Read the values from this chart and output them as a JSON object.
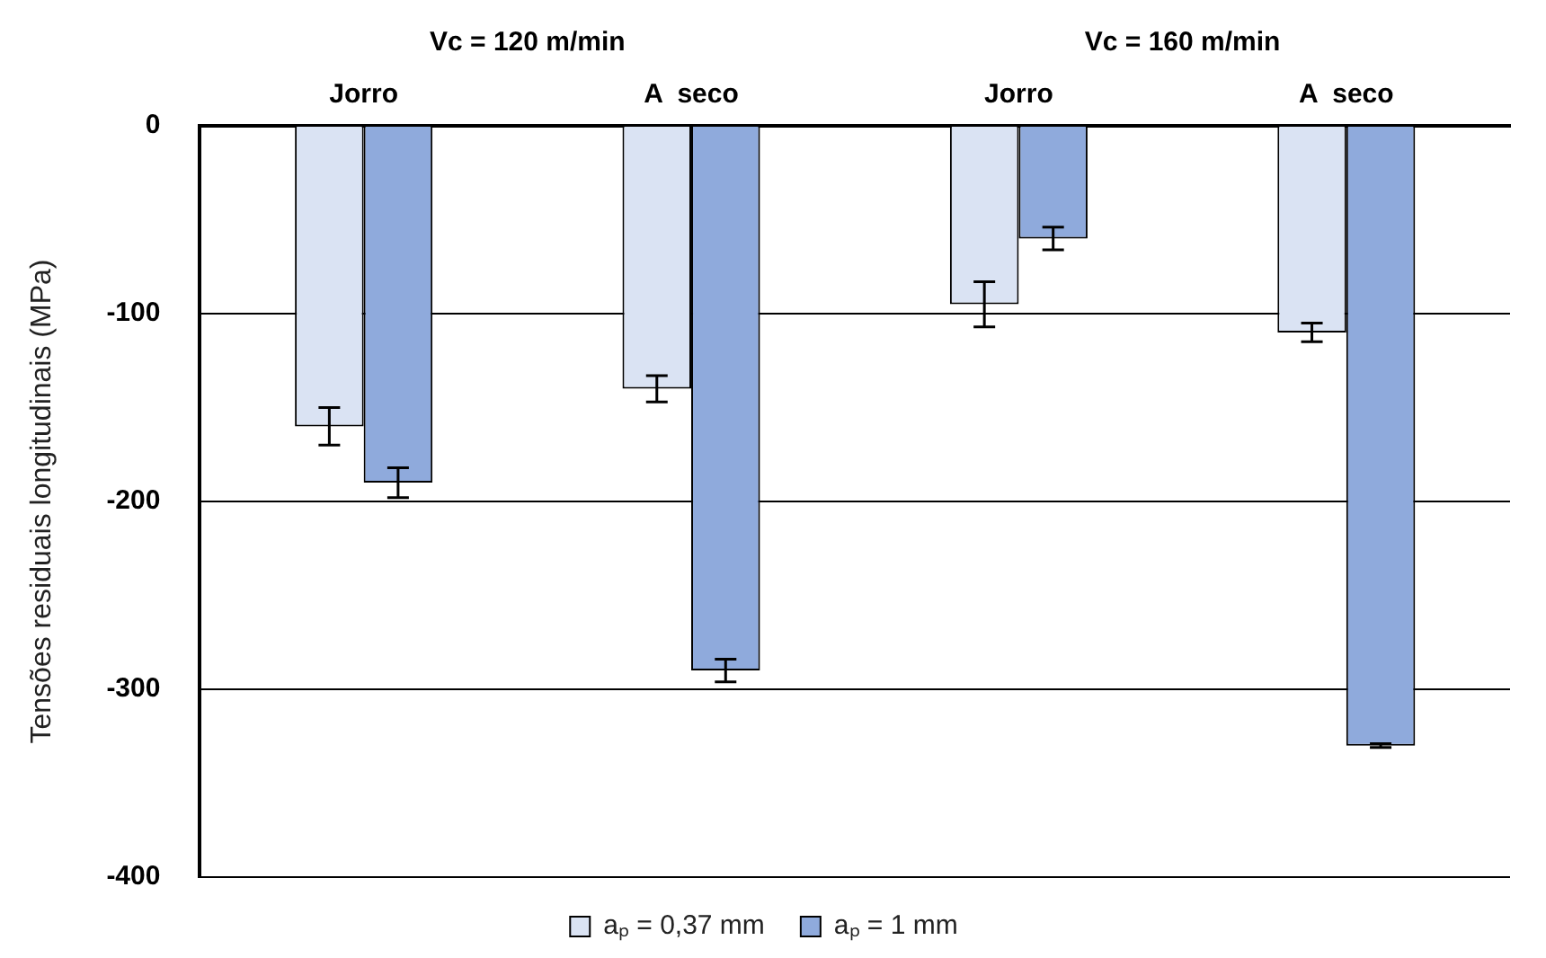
{
  "chart_data": {
    "type": "bar",
    "ylabel": "Tensões residuais longitudinais (MPa)",
    "categories": [
      "Jorro",
      "A  seco",
      "Jorro",
      "A  seco"
    ],
    "annotations": [
      "Vc = 120 m/min",
      "Vc = 160 m/min"
    ],
    "series": [
      {
        "name": "aₚ = 0,37 mm",
        "color": "#dae3f3",
        "values": [
          -160,
          -140,
          -95,
          -110
        ],
        "errors": [
          10,
          7,
          12,
          5
        ]
      },
      {
        "name": "aₚ = 1 mm",
        "color": "#8faadc",
        "values": [
          -190,
          -290,
          -60,
          -330
        ],
        "errors": [
          8,
          6,
          6,
          1
        ]
      }
    ],
    "ylim": [
      -400,
      0
    ],
    "yticks": [
      -400,
      -300,
      -200,
      -100,
      0
    ],
    "grid": "y",
    "legend": "bottom"
  }
}
